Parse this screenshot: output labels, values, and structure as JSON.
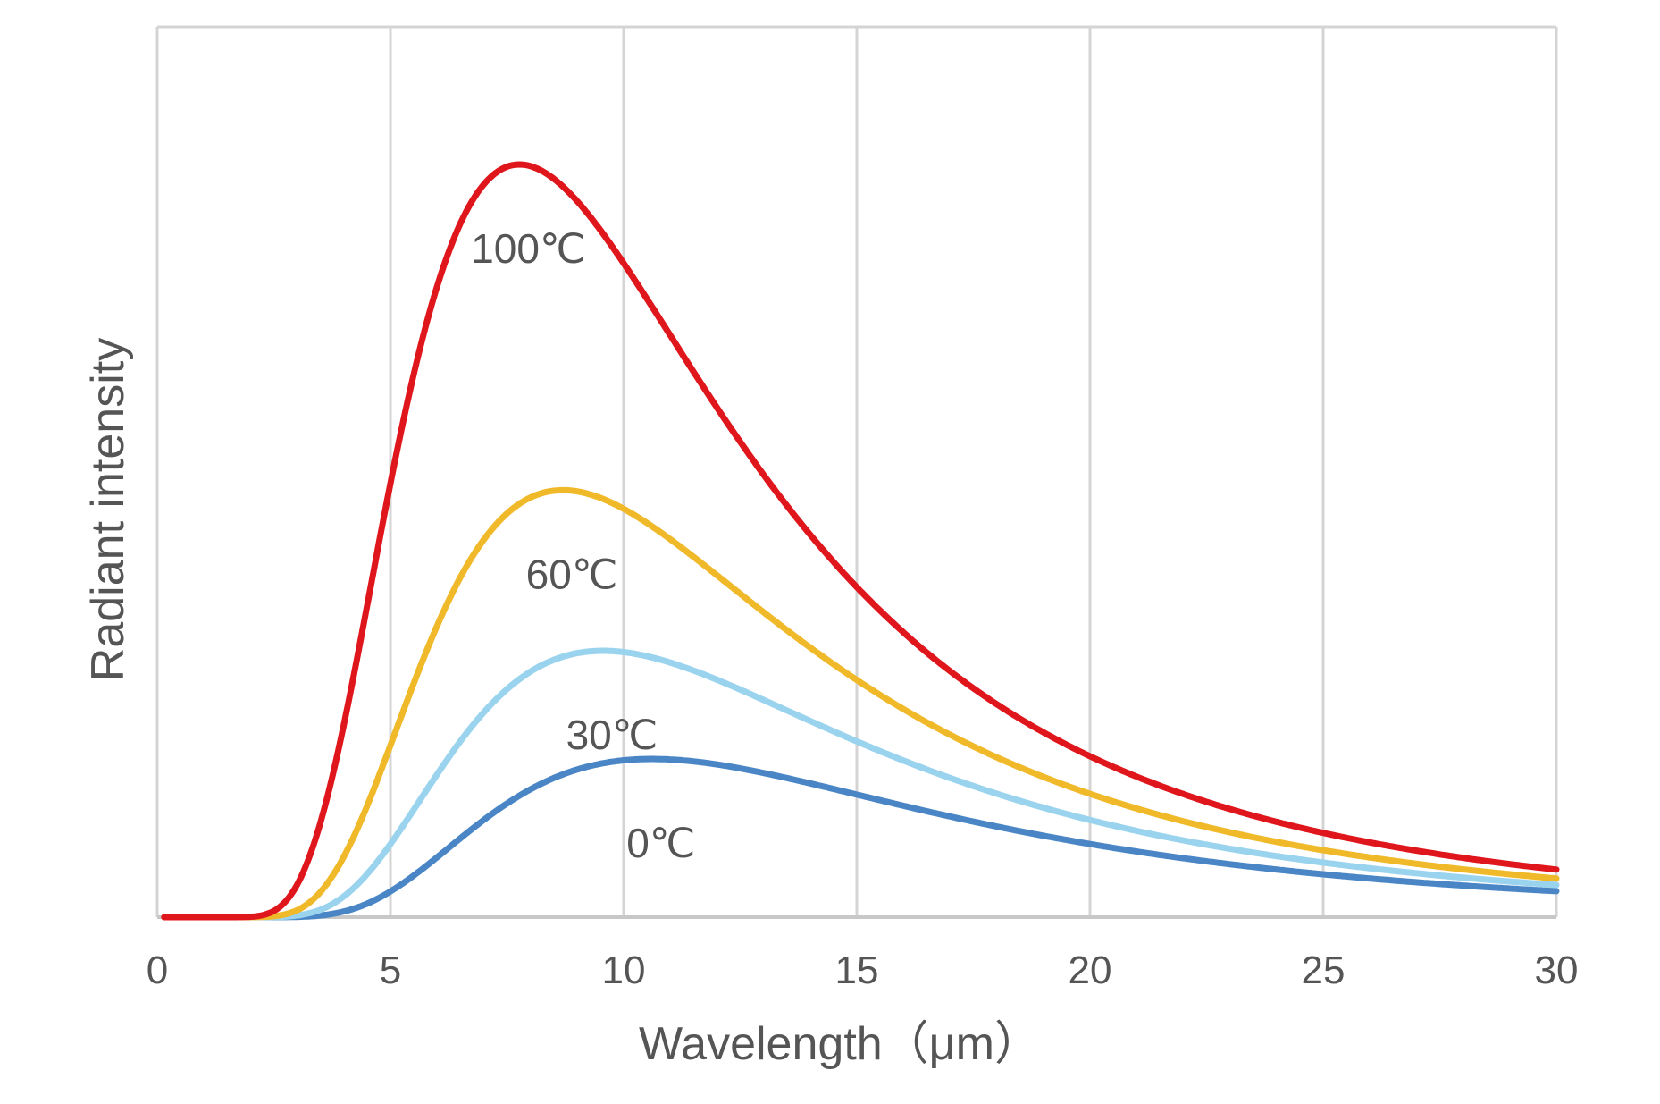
{
  "chart_data": {
    "type": "line",
    "xlabel": "Wavelength（μm）",
    "ylabel": "Radiant intensity",
    "xlim": [
      0,
      30
    ],
    "xticks": [
      "0",
      "5",
      "10",
      "15",
      "20",
      "25",
      "30"
    ],
    "xtick_values": [
      0,
      5,
      10,
      15,
      20,
      25,
      30
    ],
    "grid": "vertical",
    "series": [
      {
        "name": "0℃",
        "temperature_c": 0,
        "color": "#4a86c5"
      },
      {
        "name": "30℃",
        "temperature_c": 30,
        "color": "#9ad3ee"
      },
      {
        "name": "60℃",
        "temperature_c": 60,
        "color": "#f0b929"
      },
      {
        "name": "100℃",
        "temperature_c": 100,
        "color": "#e0161d"
      }
    ]
  }
}
